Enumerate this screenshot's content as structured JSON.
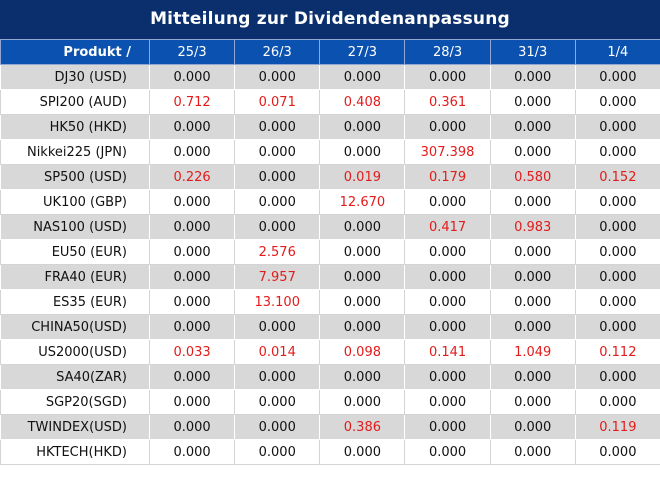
{
  "title": "Mitteilung zur Dividendenanpassung",
  "header": {
    "product_label": "Produkt /",
    "dates": [
      "25/3",
      "26/3",
      "27/3",
      "28/3",
      "31/3",
      "1/4"
    ]
  },
  "highlight_color": "#e31b1b",
  "rows": [
    {
      "product": "DJ30 (USD)",
      "values": [
        "0.000",
        "0.000",
        "0.000",
        "0.000",
        "0.000",
        "0.000"
      ]
    },
    {
      "product": "SPI200 (AUD)",
      "values": [
        "0.712",
        "0.071",
        "0.408",
        "0.361",
        "0.000",
        "0.000"
      ]
    },
    {
      "product": "HK50 (HKD)",
      "values": [
        "0.000",
        "0.000",
        "0.000",
        "0.000",
        "0.000",
        "0.000"
      ]
    },
    {
      "product": "Nikkei225 (JPN)",
      "values": [
        "0.000",
        "0.000",
        "0.000",
        "307.398",
        "0.000",
        "0.000"
      ]
    },
    {
      "product": "SP500 (USD)",
      "values": [
        "0.226",
        "0.000",
        "0.019",
        "0.179",
        "0.580",
        "0.152"
      ]
    },
    {
      "product": "UK100 (GBP)",
      "values": [
        "0.000",
        "0.000",
        "12.670",
        "0.000",
        "0.000",
        "0.000"
      ]
    },
    {
      "product": "NAS100 (USD)",
      "values": [
        "0.000",
        "0.000",
        "0.000",
        "0.417",
        "0.983",
        "0.000"
      ]
    },
    {
      "product": "EU50 (EUR)",
      "values": [
        "0.000",
        "2.576",
        "0.000",
        "0.000",
        "0.000",
        "0.000"
      ]
    },
    {
      "product": "FRA40 (EUR)",
      "values": [
        "0.000",
        "7.957",
        "0.000",
        "0.000",
        "0.000",
        "0.000"
      ]
    },
    {
      "product": "ES35 (EUR)",
      "values": [
        "0.000",
        "13.100",
        "0.000",
        "0.000",
        "0.000",
        "0.000"
      ]
    },
    {
      "product": "CHINA50(USD)",
      "values": [
        "0.000",
        "0.000",
        "0.000",
        "0.000",
        "0.000",
        "0.000"
      ]
    },
    {
      "product": "US2000(USD)",
      "values": [
        "0.033",
        "0.014",
        "0.098",
        "0.141",
        "1.049",
        "0.112"
      ]
    },
    {
      "product": "SA40(ZAR)",
      "values": [
        "0.000",
        "0.000",
        "0.000",
        "0.000",
        "0.000",
        "0.000"
      ]
    },
    {
      "product": "SGP20(SGD)",
      "values": [
        "0.000",
        "0.000",
        "0.000",
        "0.000",
        "0.000",
        "0.000"
      ]
    },
    {
      "product": "TWINDEX(USD)",
      "values": [
        "0.000",
        "0.000",
        "0.386",
        "0.000",
        "0.000",
        "0.119"
      ]
    },
    {
      "product": "HKTECH(HKD)",
      "values": [
        "0.000",
        "0.000",
        "0.000",
        "0.000",
        "0.000",
        "0.000"
      ]
    }
  ]
}
